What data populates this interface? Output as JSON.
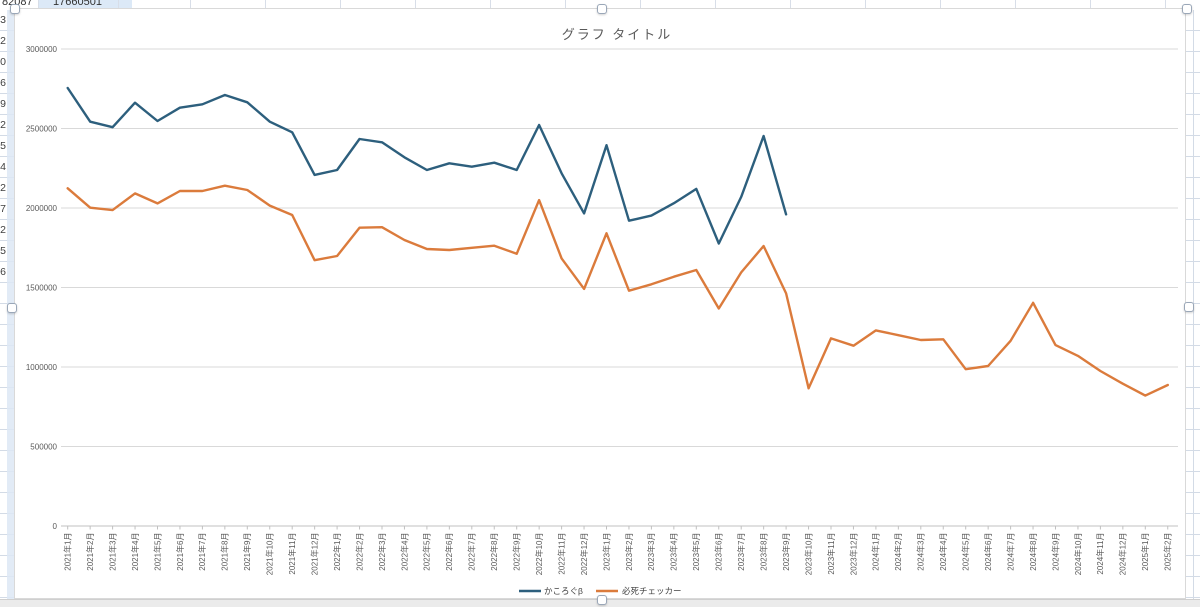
{
  "spreadsheet": {
    "top_row_cells": [
      {
        "text": "82087",
        "selected": false
      },
      {
        "text": "17660501",
        "selected": true
      }
    ],
    "left_column_digits": [
      "3",
      "2",
      "0",
      "6",
      "9",
      "2",
      "5",
      "4",
      "2",
      "7",
      "2",
      "5",
      "6"
    ]
  },
  "chart": {
    "title": "グラフ タイトル",
    "legend": [
      "かころぐβ",
      "必死チェッカー"
    ],
    "colors": {
      "series1": "#2d5f7d",
      "series2": "#db7b3c",
      "gridline": "#d9d9d9",
      "axis_line": "#c0c0c0",
      "axis_text": "#595959",
      "title_text": "#595959",
      "legend_text": "#404040"
    }
  },
  "chart_data": {
    "type": "line",
    "title": "グラフ タイトル",
    "xlabel": "",
    "ylabel": "",
    "ylim": [
      0,
      3000000
    ],
    "ytick_interval": 500000,
    "ytick_labels": [
      "0",
      "500000",
      "1000000",
      "1500000",
      "2000000",
      "2500000",
      "3000000"
    ],
    "grid": true,
    "legend_position": "bottom",
    "categories": [
      "2021年1月",
      "2021年2月",
      "2021年3月",
      "2021年4月",
      "2021年5月",
      "2021年6月",
      "2021年7月",
      "2021年8月",
      "2021年9月",
      "2021年10月",
      "2021年11月",
      "2021年12月",
      "2022年1月",
      "2022年2月",
      "2022年3月",
      "2022年4月",
      "2022年5月",
      "2022年6月",
      "2022年7月",
      "2022年8月",
      "2022年9月",
      "2022年10月",
      "2022年11月",
      "2022年12月",
      "2023年1月",
      "2023年2月",
      "2023年3月",
      "2023年4月",
      "2023年5月",
      "2023年6月",
      "2023年7月",
      "2023年8月",
      "2023年9月",
      "2023年10月",
      "2023年11月",
      "2023年12月",
      "2024年1月",
      "2024年2月",
      "2024年3月",
      "2024年4月",
      "2024年5月",
      "2024年6月",
      "2024年7月",
      "2024年8月",
      "2024年9月",
      "2024年10月",
      "2024年11月",
      "2024年12月",
      "2025年1月",
      "2025年2月"
    ],
    "series": [
      {
        "name": "かころぐβ",
        "color": "#2d5f7d",
        "values": [
          2755000,
          2543000,
          2508000,
          2662000,
          2547000,
          2631000,
          2652000,
          2711000,
          2665000,
          2543000,
          2476000,
          2208000,
          2239000,
          2434000,
          2413000,
          2319000,
          2239000,
          2281000,
          2260000,
          2285000,
          2239000,
          2522000,
          2218000,
          1966000,
          2395000,
          1920000,
          1952000,
          2030000,
          2120000,
          1777000,
          2070000,
          2453000,
          1960000,
          null,
          null,
          null,
          null,
          null,
          null,
          null,
          null,
          null,
          null,
          null,
          null,
          null,
          null,
          null,
          null,
          null
        ]
      },
      {
        "name": "必死チェッカー",
        "color": "#db7b3c",
        "values": [
          2124000,
          2002000,
          1987000,
          2092000,
          2029000,
          2107000,
          2107000,
          2140000,
          2113000,
          2015000,
          1956000,
          1672000,
          1698000,
          1876000,
          1879000,
          1799000,
          1742000,
          1736000,
          1750000,
          1763000,
          1712000,
          2050000,
          1683000,
          1491000,
          1841000,
          1480000,
          1520000,
          1568000,
          1610000,
          1368000,
          1595000,
          1761000,
          1463000,
          866000,
          1180000,
          1134000,
          1230000,
          1200000,
          1170000,
          1174000,
          986000,
          1006000,
          1165000,
          1404000,
          1138000,
          1070000,
          975000,
          895000,
          820000,
          887000
        ]
      }
    ]
  }
}
